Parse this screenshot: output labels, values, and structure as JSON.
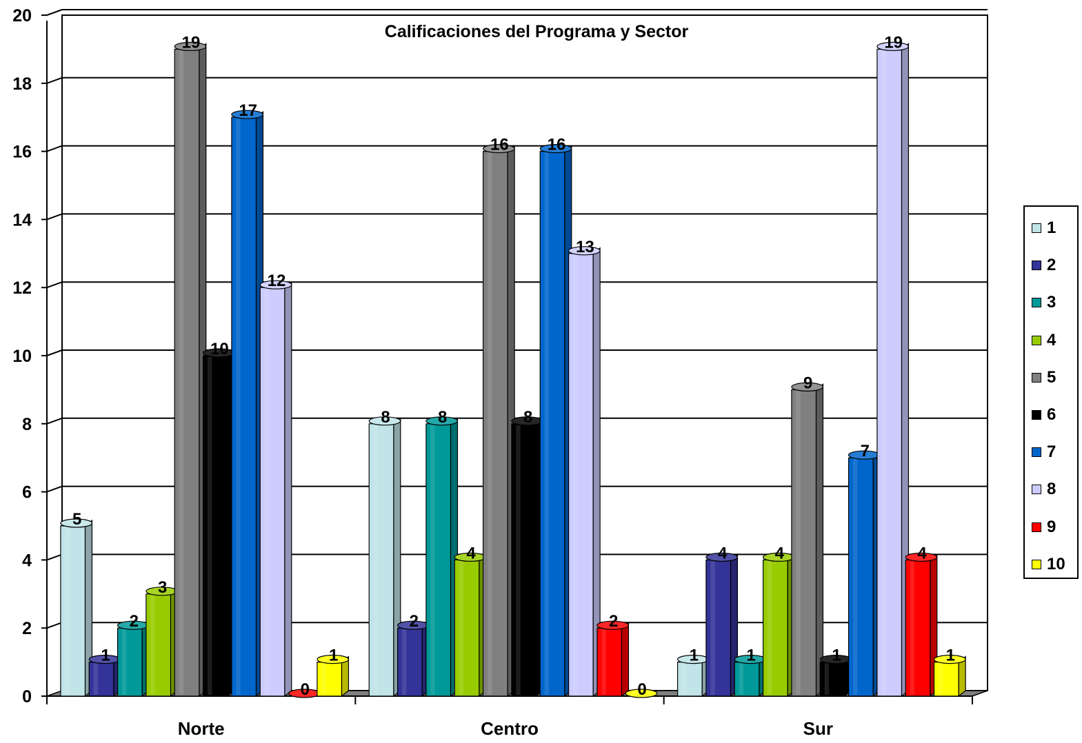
{
  "chart_data": {
    "type": "bar",
    "title": "Calificaciones del Programa y Sector",
    "xlabel": "",
    "ylabel": "",
    "ylim": [
      0,
      20
    ],
    "yticks": [
      "0",
      "2",
      "4",
      "6",
      "8",
      "10",
      "12",
      "14",
      "16",
      "18",
      "20"
    ],
    "grid": true,
    "legend_position": "right",
    "categories": [
      "Norte",
      "Centro",
      "Sur"
    ],
    "series": [
      {
        "name": "1",
        "color": "#C0E4E8",
        "values": [
          5,
          8,
          1
        ]
      },
      {
        "name": "2",
        "color": "#333399",
        "values": [
          1,
          2,
          4
        ]
      },
      {
        "name": "3",
        "color": "#009999",
        "values": [
          2,
          8,
          1
        ]
      },
      {
        "name": "4",
        "color": "#99CC00",
        "values": [
          3,
          4,
          4
        ]
      },
      {
        "name": "5",
        "color": "#808080",
        "values": [
          19,
          16,
          9
        ]
      },
      {
        "name": "6",
        "color": "#000000",
        "values": [
          10,
          8,
          1
        ]
      },
      {
        "name": "7",
        "color": "#0066CC",
        "values": [
          17,
          16,
          7
        ]
      },
      {
        "name": "8",
        "color": "#CCCCFF",
        "values": [
          12,
          13,
          19
        ]
      },
      {
        "name": "9",
        "color": "#FF0000",
        "values": [
          0,
          2,
          4
        ]
      },
      {
        "name": "10",
        "color": "#FFFF00",
        "values": [
          1,
          0,
          1
        ]
      }
    ]
  }
}
